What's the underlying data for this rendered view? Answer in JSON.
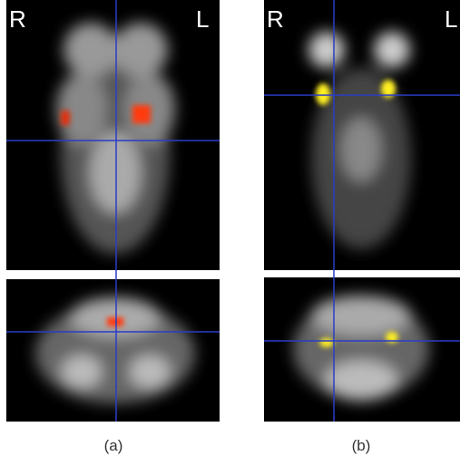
{
  "panels": [
    {
      "label": "(a)",
      "left_marker": "R",
      "right_marker": "L"
    },
    {
      "label": "(b)",
      "left_marker": "R",
      "right_marker": "L"
    }
  ]
}
